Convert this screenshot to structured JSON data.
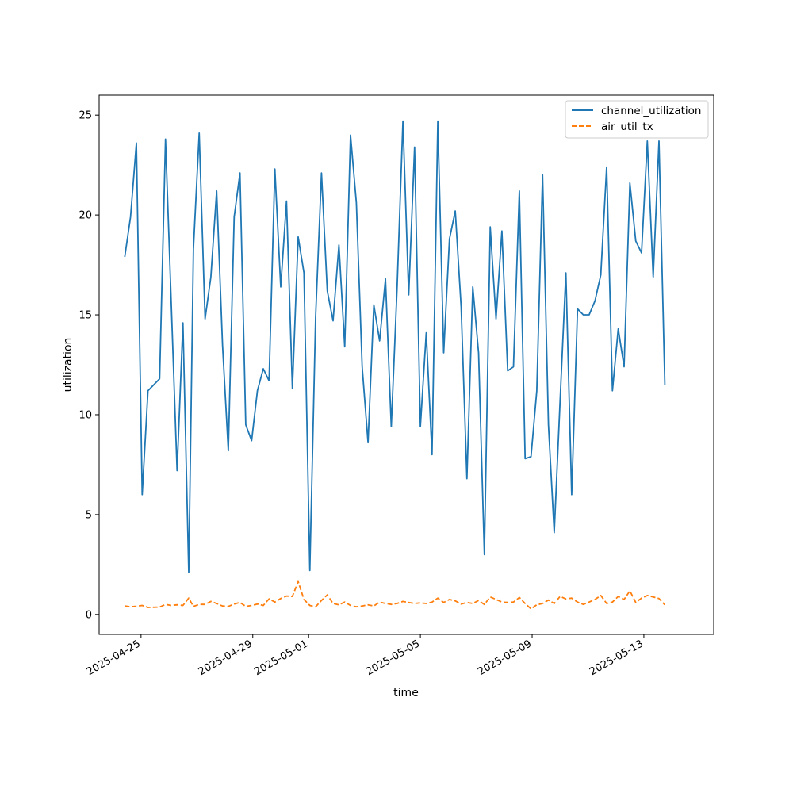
{
  "chart_data": {
    "type": "line",
    "xlabel": "time",
    "ylabel": "utilization",
    "x_axis_type": "date",
    "xlim": [
      "2025-04-23T12:00",
      "2025-05-15T12:00"
    ],
    "ylim": [
      -1,
      26
    ],
    "yticks": [
      0,
      5,
      10,
      15,
      20,
      25
    ],
    "xticks": [
      "2025-04-25",
      "2025-04-29",
      "2025-05-01",
      "2025-05-05",
      "2025-05-09",
      "2025-05-13"
    ],
    "grid": false,
    "legend_position": "top-right",
    "series": [
      {
        "name": "channel_utilization",
        "color": "#1f77b4",
        "dash": "solid",
        "points": [
          [
            "2025-04-24T10:00",
            17.9
          ],
          [
            "2025-04-24T15:00",
            19.9
          ],
          [
            "2025-04-24T20:00",
            23.6
          ],
          [
            "2025-04-25T01:00",
            6.0
          ],
          [
            "2025-04-25T06:00",
            11.2
          ],
          [
            "2025-04-25T16:00",
            11.8
          ],
          [
            "2025-04-25T21:00",
            23.8
          ],
          [
            "2025-04-26T02:00",
            15.5
          ],
          [
            "2025-04-26T07:00",
            7.2
          ],
          [
            "2025-04-26T12:00",
            14.6
          ],
          [
            "2025-04-26T17:00",
            2.1
          ],
          [
            "2025-04-26T21:00",
            18.3
          ],
          [
            "2025-04-27T02:00",
            24.1
          ],
          [
            "2025-04-27T07:00",
            14.8
          ],
          [
            "2025-04-27T12:00",
            16.9
          ],
          [
            "2025-04-27T17:00",
            21.2
          ],
          [
            "2025-04-27T22:00",
            13.5
          ],
          [
            "2025-04-28T03:00",
            8.2
          ],
          [
            "2025-04-28T08:00",
            19.9
          ],
          [
            "2025-04-28T13:00",
            22.1
          ],
          [
            "2025-04-28T18:00",
            9.5
          ],
          [
            "2025-04-28T23:00",
            8.7
          ],
          [
            "2025-04-29T04:00",
            11.2
          ],
          [
            "2025-04-29T09:00",
            12.3
          ],
          [
            "2025-04-29T14:00",
            11.7
          ],
          [
            "2025-04-29T19:00",
            22.3
          ],
          [
            "2025-04-30T00:00",
            16.4
          ],
          [
            "2025-04-30T05:00",
            20.7
          ],
          [
            "2025-04-30T10:00",
            11.3
          ],
          [
            "2025-04-30T15:00",
            18.9
          ],
          [
            "2025-04-30T20:00",
            17.1
          ],
          [
            "2025-05-01T01:00",
            2.2
          ],
          [
            "2025-05-01T06:00",
            14.9
          ],
          [
            "2025-05-01T11:00",
            22.1
          ],
          [
            "2025-05-01T16:00",
            16.2
          ],
          [
            "2025-05-01T21:00",
            14.7
          ],
          [
            "2025-05-02T02:00",
            18.5
          ],
          [
            "2025-05-02T07:00",
            13.4
          ],
          [
            "2025-05-02T12:00",
            24.0
          ],
          [
            "2025-05-02T17:00",
            20.6
          ],
          [
            "2025-05-02T22:00",
            12.4
          ],
          [
            "2025-05-03T03:00",
            8.6
          ],
          [
            "2025-05-03T08:00",
            15.5
          ],
          [
            "2025-05-03T13:00",
            13.7
          ],
          [
            "2025-05-03T18:00",
            16.8
          ],
          [
            "2025-05-03T23:00",
            9.4
          ],
          [
            "2025-05-04T04:00",
            16.4
          ],
          [
            "2025-05-04T09:00",
            24.7
          ],
          [
            "2025-05-04T14:00",
            16.0
          ],
          [
            "2025-05-04T19:00",
            23.4
          ],
          [
            "2025-05-05T00:00",
            9.4
          ],
          [
            "2025-05-05T05:00",
            14.1
          ],
          [
            "2025-05-05T10:00",
            8.0
          ],
          [
            "2025-05-05T15:00",
            24.7
          ],
          [
            "2025-05-05T20:00",
            13.1
          ],
          [
            "2025-05-06T01:00",
            18.8
          ],
          [
            "2025-05-06T06:00",
            20.2
          ],
          [
            "2025-05-06T11:00",
            15.4
          ],
          [
            "2025-05-06T16:00",
            6.8
          ],
          [
            "2025-05-06T21:00",
            16.4
          ],
          [
            "2025-05-07T02:00",
            13.1
          ],
          [
            "2025-05-07T07:00",
            3.0
          ],
          [
            "2025-05-07T12:00",
            19.4
          ],
          [
            "2025-05-07T17:00",
            14.8
          ],
          [
            "2025-05-07T22:00",
            19.2
          ],
          [
            "2025-05-08T03:00",
            12.2
          ],
          [
            "2025-05-08T08:00",
            12.4
          ],
          [
            "2025-05-08T13:00",
            21.2
          ],
          [
            "2025-05-08T18:00",
            7.8
          ],
          [
            "2025-05-08T23:00",
            7.9
          ],
          [
            "2025-05-09T04:00",
            11.2
          ],
          [
            "2025-05-09T09:00",
            22.0
          ],
          [
            "2025-05-09T14:00",
            9.5
          ],
          [
            "2025-05-09T19:00",
            4.1
          ],
          [
            "2025-05-10T00:00",
            10.7
          ],
          [
            "2025-05-10T05:00",
            17.1
          ],
          [
            "2025-05-10T10:00",
            6.0
          ],
          [
            "2025-05-10T15:00",
            15.3
          ],
          [
            "2025-05-10T20:00",
            15.0
          ],
          [
            "2025-05-11T01:00",
            15.0
          ],
          [
            "2025-05-11T06:00",
            15.7
          ],
          [
            "2025-05-11T11:00",
            17.0
          ],
          [
            "2025-05-11T16:00",
            22.4
          ],
          [
            "2025-05-11T21:00",
            11.2
          ],
          [
            "2025-05-12T02:00",
            14.3
          ],
          [
            "2025-05-12T07:00",
            12.4
          ],
          [
            "2025-05-12T12:00",
            21.6
          ],
          [
            "2025-05-12T17:00",
            18.7
          ],
          [
            "2025-05-12T22:00",
            18.1
          ],
          [
            "2025-05-13T03:00",
            23.7
          ],
          [
            "2025-05-13T08:00",
            16.9
          ],
          [
            "2025-05-13T13:00",
            23.7
          ],
          [
            "2025-05-13T18:00",
            11.5
          ]
        ]
      },
      {
        "name": "air_util_tx",
        "color": "#ff7f0e",
        "dash": "dashed",
        "points": [
          [
            "2025-04-24T10:00",
            0.42
          ],
          [
            "2025-04-24T15:00",
            0.38
          ],
          [
            "2025-04-24T20:00",
            0.41
          ],
          [
            "2025-04-25T01:00",
            0.45
          ],
          [
            "2025-04-25T06:00",
            0.35
          ],
          [
            "2025-04-25T16:00",
            0.37
          ],
          [
            "2025-04-25T21:00",
            0.5
          ],
          [
            "2025-04-26T02:00",
            0.45
          ],
          [
            "2025-04-26T07:00",
            0.48
          ],
          [
            "2025-04-26T12:00",
            0.45
          ],
          [
            "2025-04-26T17:00",
            0.82
          ],
          [
            "2025-04-26T21:00",
            0.4
          ],
          [
            "2025-04-27T02:00",
            0.5
          ],
          [
            "2025-04-27T07:00",
            0.5
          ],
          [
            "2025-04-27T12:00",
            0.65
          ],
          [
            "2025-04-27T17:00",
            0.55
          ],
          [
            "2025-04-27T22:00",
            0.42
          ],
          [
            "2025-04-28T03:00",
            0.4
          ],
          [
            "2025-04-28T08:00",
            0.52
          ],
          [
            "2025-04-28T13:00",
            0.6
          ],
          [
            "2025-04-28T18:00",
            0.4
          ],
          [
            "2025-04-28T23:00",
            0.45
          ],
          [
            "2025-04-29T04:00",
            0.52
          ],
          [
            "2025-04-29T09:00",
            0.45
          ],
          [
            "2025-04-29T14:00",
            0.78
          ],
          [
            "2025-04-29T19:00",
            0.62
          ],
          [
            "2025-04-30T00:00",
            0.8
          ],
          [
            "2025-04-30T05:00",
            0.92
          ],
          [
            "2025-04-30T10:00",
            0.9
          ],
          [
            "2025-04-30T15:00",
            1.65
          ],
          [
            "2025-04-30T20:00",
            0.75
          ],
          [
            "2025-05-01T01:00",
            0.45
          ],
          [
            "2025-05-01T06:00",
            0.38
          ],
          [
            "2025-05-01T11:00",
            0.7
          ],
          [
            "2025-05-01T16:00",
            0.98
          ],
          [
            "2025-05-01T21:00",
            0.55
          ],
          [
            "2025-05-02T02:00",
            0.48
          ],
          [
            "2025-05-02T07:00",
            0.62
          ],
          [
            "2025-05-02T12:00",
            0.45
          ],
          [
            "2025-05-02T17:00",
            0.38
          ],
          [
            "2025-05-02T22:00",
            0.42
          ],
          [
            "2025-05-03T03:00",
            0.48
          ],
          [
            "2025-05-03T08:00",
            0.42
          ],
          [
            "2025-05-03T13:00",
            0.62
          ],
          [
            "2025-05-03T18:00",
            0.55
          ],
          [
            "2025-05-03T23:00",
            0.5
          ],
          [
            "2025-05-04T04:00",
            0.55
          ],
          [
            "2025-05-04T09:00",
            0.65
          ],
          [
            "2025-05-04T14:00",
            0.6
          ],
          [
            "2025-05-04T19:00",
            0.55
          ],
          [
            "2025-05-05T00:00",
            0.58
          ],
          [
            "2025-05-05T05:00",
            0.55
          ],
          [
            "2025-05-05T10:00",
            0.62
          ],
          [
            "2025-05-05T15:00",
            0.82
          ],
          [
            "2025-05-05T20:00",
            0.6
          ],
          [
            "2025-05-06T01:00",
            0.75
          ],
          [
            "2025-05-06T06:00",
            0.68
          ],
          [
            "2025-05-06T11:00",
            0.52
          ],
          [
            "2025-05-06T16:00",
            0.6
          ],
          [
            "2025-05-06T21:00",
            0.55
          ],
          [
            "2025-05-07T02:00",
            0.7
          ],
          [
            "2025-05-07T07:00",
            0.5
          ],
          [
            "2025-05-07T12:00",
            0.88
          ],
          [
            "2025-05-07T17:00",
            0.75
          ],
          [
            "2025-05-07T22:00",
            0.62
          ],
          [
            "2025-05-08T03:00",
            0.6
          ],
          [
            "2025-05-08T08:00",
            0.62
          ],
          [
            "2025-05-08T13:00",
            0.85
          ],
          [
            "2025-05-08T18:00",
            0.55
          ],
          [
            "2025-05-08T23:00",
            0.28
          ],
          [
            "2025-05-09T04:00",
            0.48
          ],
          [
            "2025-05-09T09:00",
            0.55
          ],
          [
            "2025-05-09T14:00",
            0.72
          ],
          [
            "2025-05-09T19:00",
            0.55
          ],
          [
            "2025-05-10T00:00",
            0.9
          ],
          [
            "2025-05-10T05:00",
            0.78
          ],
          [
            "2025-05-10T10:00",
            0.82
          ],
          [
            "2025-05-10T15:00",
            0.62
          ],
          [
            "2025-05-10T20:00",
            0.5
          ],
          [
            "2025-05-11T01:00",
            0.62
          ],
          [
            "2025-05-11T06:00",
            0.75
          ],
          [
            "2025-05-11T11:00",
            0.95
          ],
          [
            "2025-05-11T16:00",
            0.55
          ],
          [
            "2025-05-11T21:00",
            0.62
          ],
          [
            "2025-05-12T02:00",
            0.9
          ],
          [
            "2025-05-12T07:00",
            0.75
          ],
          [
            "2025-05-12T12:00",
            1.18
          ],
          [
            "2025-05-12T17:00",
            0.6
          ],
          [
            "2025-05-12T22:00",
            0.82
          ],
          [
            "2025-05-13T03:00",
            0.95
          ],
          [
            "2025-05-13T08:00",
            0.88
          ],
          [
            "2025-05-13T13:00",
            0.8
          ],
          [
            "2025-05-13T18:00",
            0.48
          ]
        ]
      }
    ]
  }
}
